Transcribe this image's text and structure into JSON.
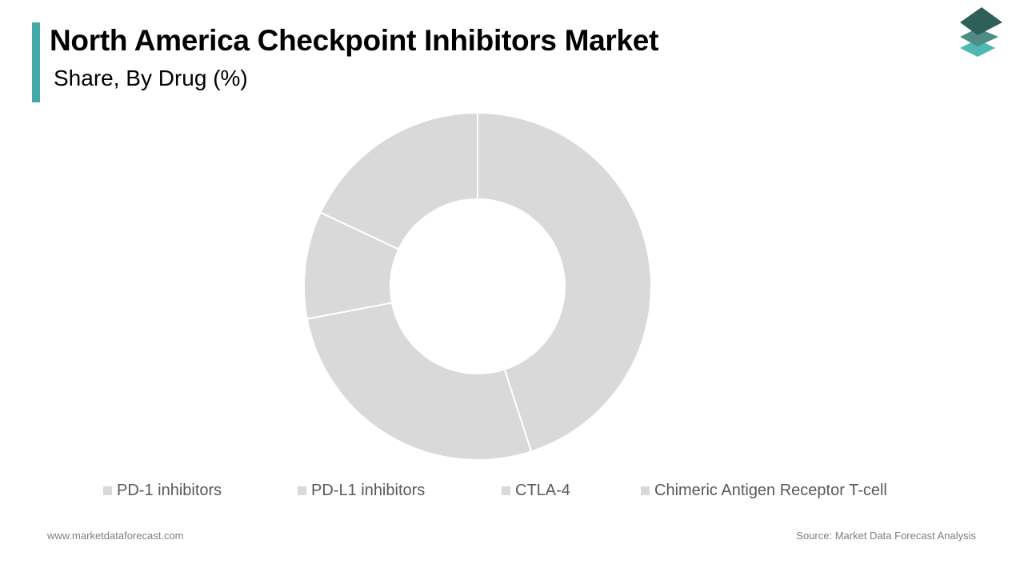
{
  "header": {
    "title": "North America Checkpoint Inhibitors Market",
    "subtitle": "Share, By Drug (%)"
  },
  "chart_data": {
    "type": "pie",
    "donut": true,
    "categories": [
      "PD-1 inhibitors",
      "PD-L1 inhibitors",
      "CTLA-4",
      "Chimeric Antigen Receptor T-cell"
    ],
    "values": [
      45,
      27,
      10,
      18
    ],
    "unit": "%",
    "slice_color": "#d9d9d9",
    "legend_position": "bottom"
  },
  "legend": {
    "items": [
      {
        "label": "PD-1 inhibitors",
        "color": "#d9d9d9"
      },
      {
        "label": "PD-L1 inhibitors",
        "color": "#d9d9d9"
      },
      {
        "label": "CTLA-4",
        "color": "#d9d9d9"
      },
      {
        "label": "Chimeric Antigen Receptor T-cell",
        "color": "#d9d9d9"
      }
    ]
  },
  "footer": {
    "website": "www.marketdataforecast.com",
    "source": "Source: Market Data Forecast Analysis"
  },
  "colors": {
    "accent": "#43a9a6",
    "logo_dark": "#2f5f5a",
    "logo_mid": "#4f8c86",
    "logo_light": "#4fb8b0"
  },
  "icons": {
    "logo": "stacked-layers-icon"
  }
}
